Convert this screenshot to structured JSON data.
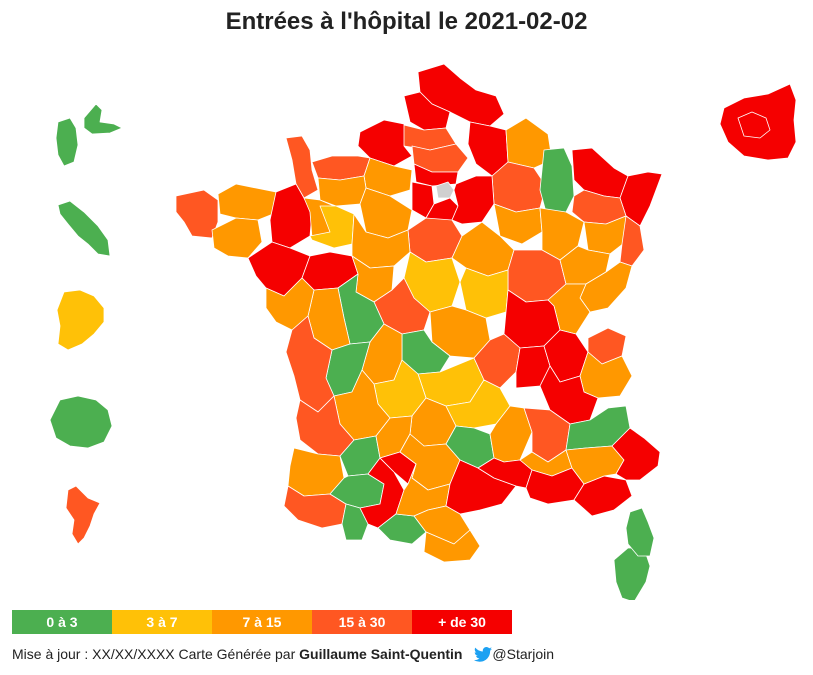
{
  "header": {
    "title": "Entrées à l'hôpital le 2021-02-02"
  },
  "colors": {
    "c0_3": "#4caf50",
    "c3_7": "#ffc107",
    "c7_15": "#ff9800",
    "c15_30": "#ff5722",
    "c30p": "#f50000",
    "no_data": "#d0d0d0"
  },
  "legend": [
    {
      "label": "0 à 3",
      "color": "#4caf50"
    },
    {
      "label": "3 à 7",
      "color": "#ffc107"
    },
    {
      "label": "7 à 15",
      "color": "#ff9800"
    },
    {
      "label": "15 à 30",
      "color": "#ff5722"
    },
    {
      "label": "+ de 30",
      "color": "#f50000"
    }
  ],
  "footer": {
    "update": "Mise à jour : XX/XX/XXXX",
    "generated": "Carte Générée par",
    "author": "Guillaume Saint-Quentin",
    "handle": "@Starjoin",
    "icon": "twitter-bird-icon"
  }
}
